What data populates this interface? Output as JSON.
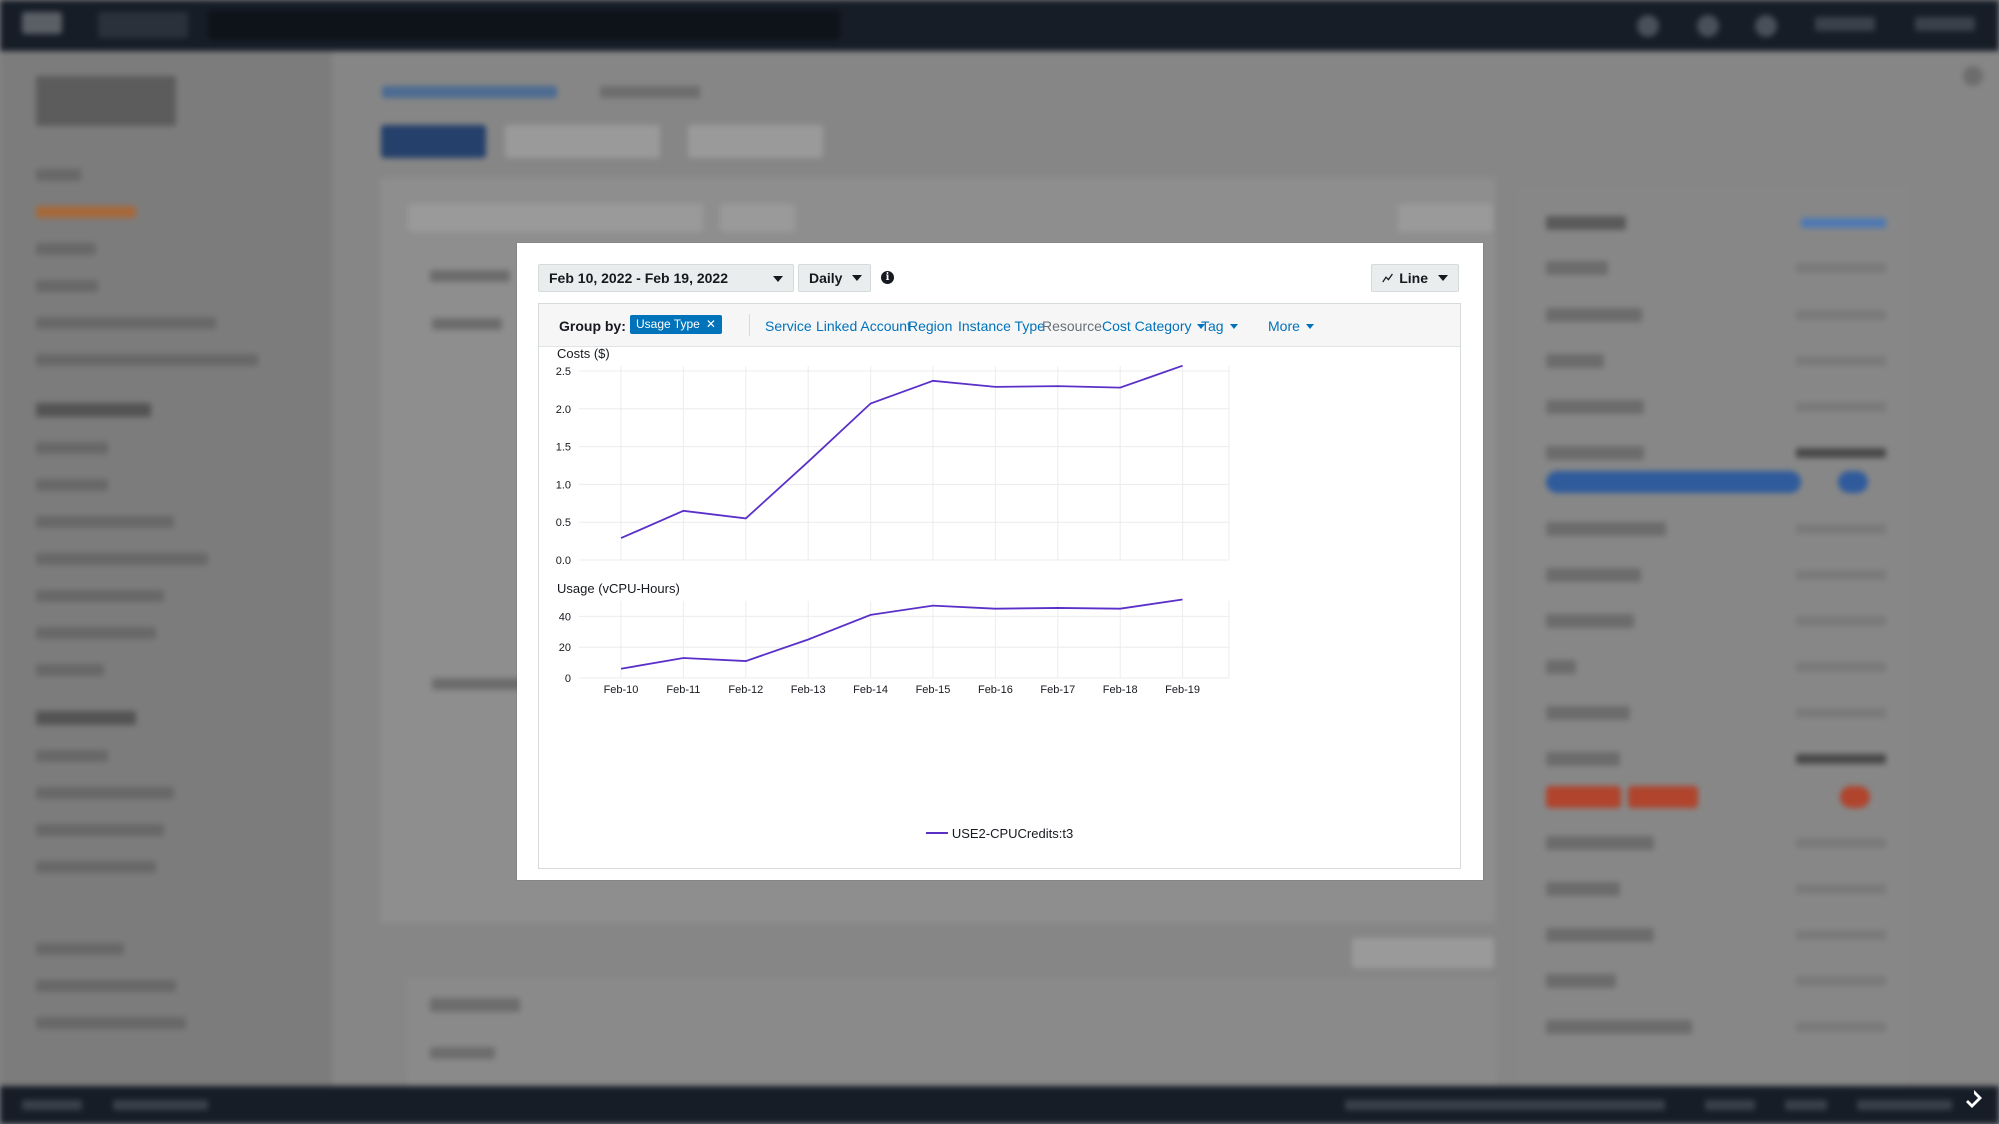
{
  "toolbar": {
    "date_range": "Feb 10, 2022 - Feb 19, 2022",
    "granularity": "Daily",
    "chart_type": "Line"
  },
  "group_by": {
    "label": "Group by:",
    "selected": "Usage Type",
    "options": [
      {
        "label": "Service",
        "dropdown": false,
        "muted": false
      },
      {
        "label": "Linked Account",
        "dropdown": false,
        "muted": false
      },
      {
        "label": "Region",
        "dropdown": false,
        "muted": false
      },
      {
        "label": "Instance Type",
        "dropdown": false,
        "muted": false
      },
      {
        "label": "Resource",
        "dropdown": false,
        "muted": true
      },
      {
        "label": "Cost Category",
        "dropdown": true,
        "muted": false
      },
      {
        "label": "Tag",
        "dropdown": true,
        "muted": false
      },
      {
        "label": "More",
        "dropdown": true,
        "muted": false
      }
    ]
  },
  "chart_data": [
    {
      "type": "line",
      "title": "Costs ($)",
      "x": [
        "Feb-10",
        "Feb-11",
        "Feb-12",
        "Feb-13",
        "Feb-14",
        "Feb-15",
        "Feb-16",
        "Feb-17",
        "Feb-18",
        "Feb-19"
      ],
      "series": [
        {
          "name": "USE2-CPUCredits:t3",
          "values": [
            0.29,
            0.65,
            0.55,
            1.3,
            2.07,
            2.37,
            2.29,
            2.3,
            2.28,
            2.57
          ]
        }
      ],
      "ylim": [
        0,
        2.5
      ],
      "yticks": [
        "0.0",
        "0.5",
        "1.0",
        "1.5",
        "2.0",
        "2.5"
      ],
      "grid": true,
      "color": "#5a30c9"
    },
    {
      "type": "line",
      "title": "Usage (vCPU-Hours)",
      "x": [
        "Feb-10",
        "Feb-11",
        "Feb-12",
        "Feb-13",
        "Feb-14",
        "Feb-15",
        "Feb-16",
        "Feb-17",
        "Feb-18",
        "Feb-19"
      ],
      "series": [
        {
          "name": "USE2-CPUCredits:t3",
          "values": [
            6,
            13,
            11,
            25,
            41,
            47,
            45,
            45.5,
            45,
            51
          ]
        }
      ],
      "ylim": [
        0,
        50
      ],
      "yticks": [
        "0",
        "20",
        "40"
      ],
      "grid": true,
      "color": "#5a30c9"
    }
  ],
  "legend": {
    "label": "USE2-CPUCredits:t3",
    "color": "#5a30c9"
  },
  "icons": [
    "info-icon",
    "line-chart-icon",
    "close-icon",
    "chevron-down-icon"
  ]
}
